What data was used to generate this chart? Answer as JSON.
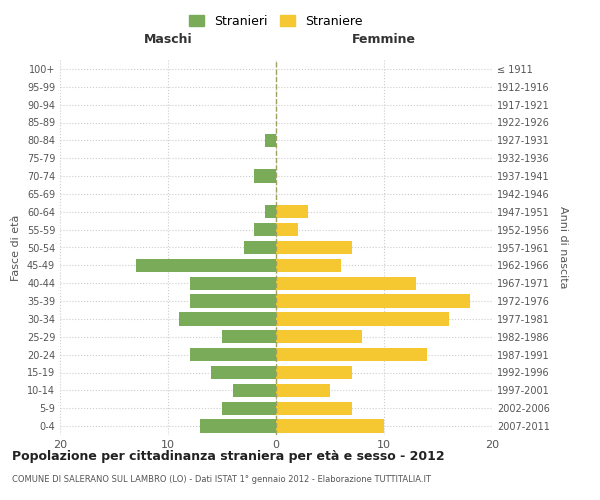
{
  "age_groups": [
    "0-4",
    "5-9",
    "10-14",
    "15-19",
    "20-24",
    "25-29",
    "30-34",
    "35-39",
    "40-44",
    "45-49",
    "50-54",
    "55-59",
    "60-64",
    "65-69",
    "70-74",
    "75-79",
    "80-84",
    "85-89",
    "90-94",
    "95-99",
    "100+"
  ],
  "birth_years": [
    "2007-2011",
    "2002-2006",
    "1997-2001",
    "1992-1996",
    "1987-1991",
    "1982-1986",
    "1977-1981",
    "1972-1976",
    "1967-1971",
    "1962-1966",
    "1957-1961",
    "1952-1956",
    "1947-1951",
    "1942-1946",
    "1937-1941",
    "1932-1936",
    "1927-1931",
    "1922-1926",
    "1917-1921",
    "1912-1916",
    "≤ 1911"
  ],
  "maschi": [
    7,
    5,
    4,
    6,
    8,
    5,
    9,
    8,
    8,
    13,
    3,
    2,
    1,
    0,
    2,
    0,
    1,
    0,
    0,
    0,
    0
  ],
  "femmine": [
    10,
    7,
    5,
    7,
    14,
    8,
    16,
    18,
    13,
    6,
    7,
    2,
    3,
    0,
    0,
    0,
    0,
    0,
    0,
    0,
    0
  ],
  "male_color": "#7aab58",
  "female_color": "#f5c731",
  "background_color": "#ffffff",
  "grid_color": "#cccccc",
  "title": "Popolazione per cittadinanza straniera per età e sesso - 2012",
  "subtitle": "COMUNE DI SALERANO SUL LAMBRO (LO) - Dati ISTAT 1° gennaio 2012 - Elaborazione TUTTITALIA.IT",
  "xlabel_left": "Maschi",
  "xlabel_right": "Femmine",
  "ylabel_left": "Fasce di età",
  "ylabel_right": "Anni di nascita",
  "legend_male": "Stranieri",
  "legend_female": "Straniere",
  "xlim": 20,
  "dashed_line_color": "#a0a060"
}
